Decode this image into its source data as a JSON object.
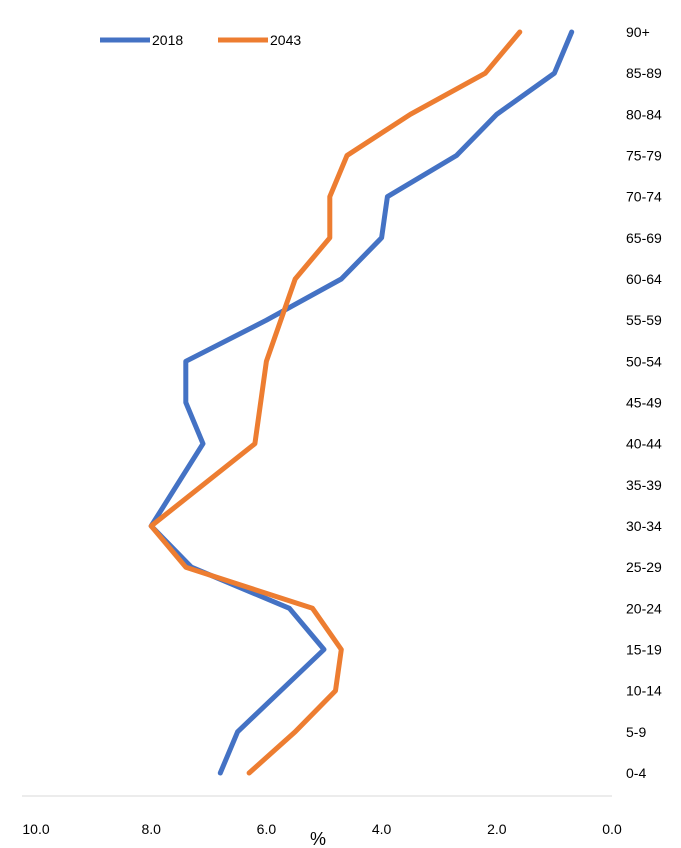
{
  "chart_data": {
    "type": "line",
    "orientation": "horizontal",
    "title": "",
    "xlabel": "%",
    "ylabel": "",
    "xlim": [
      0,
      10
    ],
    "x_reversed": true,
    "x_ticks": [
      "10.0",
      "8.0",
      "6.0",
      "4.0",
      "2.0",
      "0.0"
    ],
    "categories": [
      "0-4",
      "5-9",
      "10-14",
      "15-19",
      "20-24",
      "25-29",
      "30-34",
      "35-39",
      "40-44",
      "45-49",
      "50-54",
      "55-59",
      "60-64",
      "65-69",
      "70-74",
      "75-79",
      "80-84",
      "85-89",
      "90+"
    ],
    "series": [
      {
        "name": "2018",
        "color": "#4472C4",
        "values": [
          6.8,
          6.5,
          null,
          5.0,
          5.6,
          7.3,
          8.0,
          null,
          7.1,
          7.4,
          7.4,
          6.0,
          4.7,
          4.0,
          3.9,
          2.7,
          2.0,
          1.0,
          0.7
        ]
      },
      {
        "name": "2043",
        "color": "#ED7D31",
        "values": [
          6.3,
          5.5,
          4.8,
          4.7,
          5.2,
          7.4,
          8.0,
          null,
          6.2,
          null,
          6.0,
          null,
          5.5,
          4.9,
          4.9,
          4.6,
          3.5,
          2.2,
          1.6
        ]
      }
    ],
    "legend": {
      "position": "top-left",
      "entries": [
        "2018",
        "2043"
      ]
    },
    "grid": false
  }
}
